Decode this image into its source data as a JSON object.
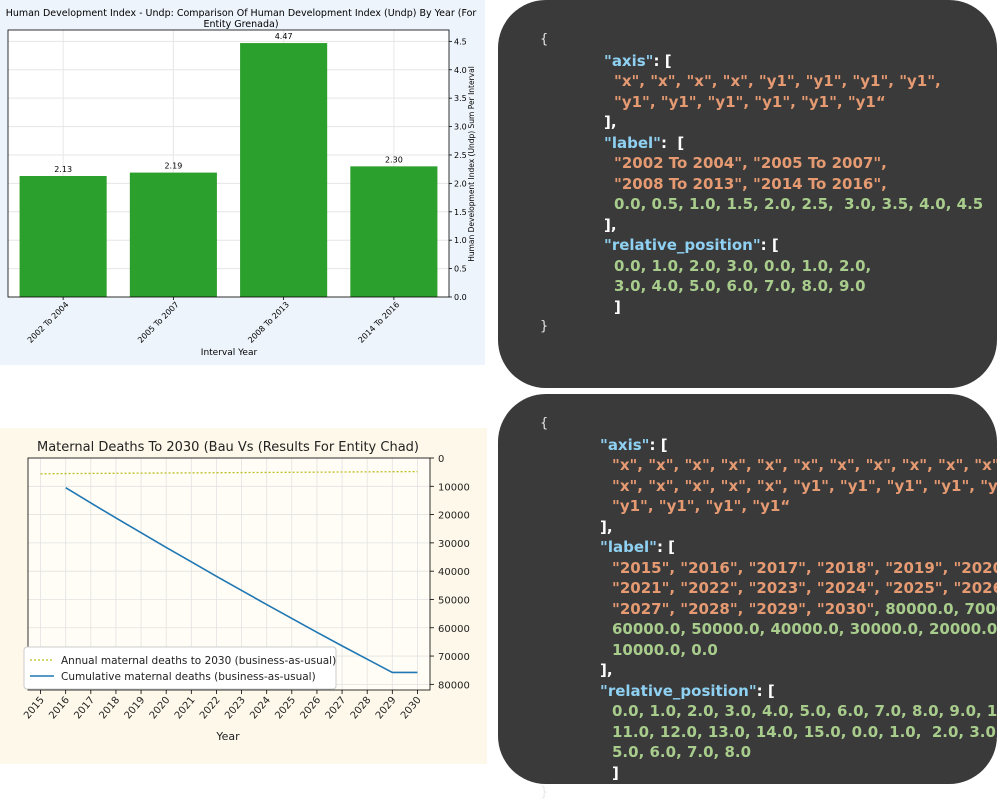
{
  "chart_data": [
    {
      "type": "bar",
      "title": "Human Development Index - Undp: Comparison Of Human Development Index (Undp) By Year (For Entity Grenada)",
      "title_lines": [
        "Human Development Index - Undp: Comparison Of Human Development Index (Undp) By Year (For",
        "Entity Grenada)"
      ],
      "xlabel": "Interval Year",
      "ylabel": "Human Development Index (Undp) Sum Per Interval",
      "categories": [
        "2002 To 2004",
        "2005 To 2007",
        "2008 To 2013",
        "2014 To 2016"
      ],
      "values": [
        2.13,
        2.19,
        4.47,
        2.3
      ],
      "data_labels": [
        "2.13",
        "2.19",
        "4.47",
        "2.30"
      ],
      "yticks": [
        "0.0",
        "0.5",
        "1.0",
        "1.5",
        "2.0",
        "2.5",
        "3.0",
        "3.5",
        "4.0",
        "4.5"
      ],
      "ylim": [
        0,
        4.7
      ],
      "y_axis_side": "right",
      "bar_color": "#2ca02c",
      "grid": true
    },
    {
      "type": "line",
      "title": "Maternal Deaths To 2030 (Bau Vs (Results For Entity Chad)",
      "xlabel": "Year",
      "x": [
        2015,
        2016,
        2017,
        2018,
        2019,
        2020,
        2021,
        2022,
        2023,
        2024,
        2025,
        2026,
        2027,
        2028,
        2029,
        2030
      ],
      "xticks": [
        "2015",
        "2016",
        "2017",
        "2018",
        "2019",
        "2020",
        "2021",
        "2022",
        "2023",
        "2024",
        "2025",
        "2026",
        "2027",
        "2028",
        "2029",
        "2030"
      ],
      "yticks": [
        "0",
        "10000",
        "20000",
        "30000",
        "40000",
        "50000",
        "60000",
        "70000",
        "80000"
      ],
      "ylim": [
        0,
        82000
      ],
      "y_inverted": true,
      "y_axis_side": "right",
      "grid": true,
      "legend_position": "lower-left",
      "series": [
        {
          "name": "Annual maternal deaths to 2030 (business-as-usual)",
          "style": "dotted",
          "color": "#bcbd22",
          "x": [
            2015,
            2016,
            2017,
            2018,
            2019,
            2020,
            2021,
            2022,
            2023,
            2024,
            2025,
            2026,
            2027,
            2028,
            2029,
            2030
          ],
          "values": [
            5600,
            5500,
            5450,
            5400,
            5350,
            5300,
            5250,
            5200,
            5150,
            5100,
            5050,
            5000,
            4950,
            4900,
            4850,
            4800
          ]
        },
        {
          "name": "Cumulative maternal deaths (business-as-usual)",
          "style": "solid",
          "color": "#1f77b4",
          "x": [
            2016,
            2017,
            2018,
            2019,
            2020,
            2021,
            2022,
            2023,
            2024,
            2025,
            2026,
            2027,
            2028,
            2029,
            2030
          ],
          "values": [
            10500,
            15900,
            21200,
            26400,
            31600,
            36700,
            41800,
            46800,
            51800,
            56700,
            61600,
            66400,
            71100,
            75800,
            75800
          ]
        }
      ]
    }
  ]
}
